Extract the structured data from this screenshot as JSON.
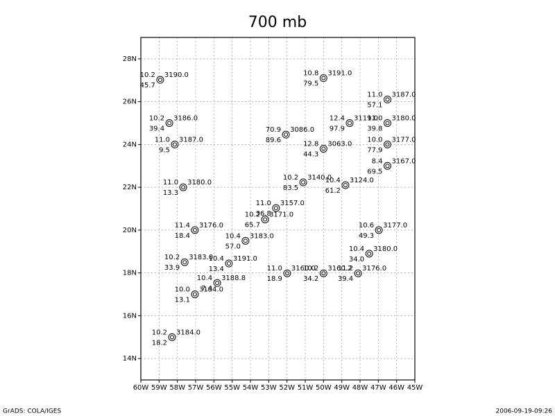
{
  "chart_data": {
    "type": "station",
    "title": "700 mb",
    "footer_left": "GrADS: COLA/IGES",
    "footer_right": "2006-09-19-09:26",
    "xlim": [
      -60,
      -45
    ],
    "ylim": [
      13,
      29
    ],
    "xticks": [
      {
        "value": -60,
        "label": "60W"
      },
      {
        "value": -59,
        "label": "59W"
      },
      {
        "value": -58,
        "label": "58W"
      },
      {
        "value": -57,
        "label": "57W"
      },
      {
        "value": -56,
        "label": "56W"
      },
      {
        "value": -55,
        "label": "55W"
      },
      {
        "value": -54,
        "label": "54W"
      },
      {
        "value": -53,
        "label": "53W"
      },
      {
        "value": -52,
        "label": "52W"
      },
      {
        "value": -51,
        "label": "51W"
      },
      {
        "value": -50,
        "label": "50W"
      },
      {
        "value": -49,
        "label": "49W"
      },
      {
        "value": -48,
        "label": "48W"
      },
      {
        "value": -47,
        "label": "47W"
      },
      {
        "value": -46,
        "label": "46W"
      },
      {
        "value": -45,
        "label": "45W"
      }
    ],
    "yticks": [
      {
        "value": 14,
        "label": "14N"
      },
      {
        "value": 16,
        "label": "16N"
      },
      {
        "value": 18,
        "label": "18N"
      },
      {
        "value": 20,
        "label": "20N"
      },
      {
        "value": 22,
        "label": "22N"
      },
      {
        "value": 24,
        "label": "24N"
      },
      {
        "value": 26,
        "label": "26N"
      },
      {
        "value": 28,
        "label": "28N"
      }
    ],
    "grid": true,
    "stations": [
      {
        "lon": -58.94,
        "lat": 27.02,
        "temp": "10.2",
        "dd": "45.7",
        "height": "3190.0"
      },
      {
        "lon": -50.0,
        "lat": 27.1,
        "temp": "10.8",
        "dd": "79.5",
        "height": "3191.0"
      },
      {
        "lon": -46.5,
        "lat": 26.1,
        "temp": "11.0",
        "dd": "57.1",
        "height": "3187.0"
      },
      {
        "lon": -58.44,
        "lat": 25.0,
        "temp": "10.2",
        "dd": "39.4",
        "height": "3186.0"
      },
      {
        "lon": -46.5,
        "lat": 25.0,
        "temp": "11.0",
        "dd": "39.8",
        "height": "3180.0"
      },
      {
        "lon": -58.14,
        "lat": 24.0,
        "temp": "11.0",
        "dd": "9.5",
        "height": "3187.0"
      },
      {
        "lon": -46.5,
        "lat": 24.0,
        "temp": "10.0",
        "dd": "77.9",
        "height": "3177.0"
      },
      {
        "lon": -48.57,
        "lat": 25.0,
        "temp": "12.4",
        "dd": "97.9",
        "height": "3119.0"
      },
      {
        "lon": -52.06,
        "lat": 24.46,
        "temp": "70.9",
        "dd": "89.6",
        "height": "3086.0"
      },
      {
        "lon": -50.0,
        "lat": 23.8,
        "temp": "12.8",
        "dd": "44.3",
        "height": "3063.0"
      },
      {
        "lon": -46.5,
        "lat": 23.0,
        "temp": "8.4",
        "dd": "69.5",
        "height": "3167.0"
      },
      {
        "lon": -57.68,
        "lat": 22.0,
        "temp": "11.0",
        "dd": "13.3",
        "height": "3180.0"
      },
      {
        "lon": -48.8,
        "lat": 22.1,
        "temp": "10.4",
        "dd": "61.2",
        "height": "3124.0"
      },
      {
        "lon": -51.11,
        "lat": 22.23,
        "temp": "10.2",
        "dd": "83.5",
        "height": "3140.0"
      },
      {
        "lon": -52.6,
        "lat": 21.03,
        "temp": "11.0",
        "dd": "36.8",
        "height": "3157.0"
      },
      {
        "lon": -53.2,
        "lat": 20.5,
        "temp": "10.2",
        "dd": "65.7",
        "height": "3171.0"
      },
      {
        "lon": -57.04,
        "lat": 20.0,
        "temp": "11.4",
        "dd": "18.4",
        "height": "3176.0"
      },
      {
        "lon": -46.97,
        "lat": 20.0,
        "temp": "10.6",
        "dd": "49.3",
        "height": "3177.0"
      },
      {
        "lon": -54.27,
        "lat": 19.5,
        "temp": "10.4",
        "dd": "57.0",
        "height": "3183.0"
      },
      {
        "lon": -47.5,
        "lat": 18.9,
        "temp": "10.4",
        "dd": "34.0",
        "height": "3180.0"
      },
      {
        "lon": -57.6,
        "lat": 18.5,
        "temp": "10.2",
        "dd": "33.9",
        "height": "3183.0"
      },
      {
        "lon": -55.18,
        "lat": 18.44,
        "temp": "10.4",
        "dd": "13.4",
        "height": "3191.0"
      },
      {
        "lon": -51.99,
        "lat": 17.98,
        "temp": "11.0",
        "dd": "18.9",
        "height": "3160.0"
      },
      {
        "lon": -50.0,
        "lat": 17.98,
        "temp": "10.2",
        "dd": "34.2",
        "height": "3160.2"
      },
      {
        "lon": -48.11,
        "lat": 17.98,
        "temp": "11.2",
        "dd": "39.4",
        "height": "3176.0"
      },
      {
        "lon": -55.82,
        "lat": 17.53,
        "temp": "10.4",
        "dd": "7.4",
        "height": "3188.8"
      },
      {
        "lon": -57.04,
        "lat": 17.0,
        "temp": "10.0",
        "dd": "13.1",
        "height": "3184.0"
      },
      {
        "lon": -58.29,
        "lat": 15.0,
        "temp": "10.2",
        "dd": "18.2",
        "height": "3184.0"
      }
    ]
  }
}
